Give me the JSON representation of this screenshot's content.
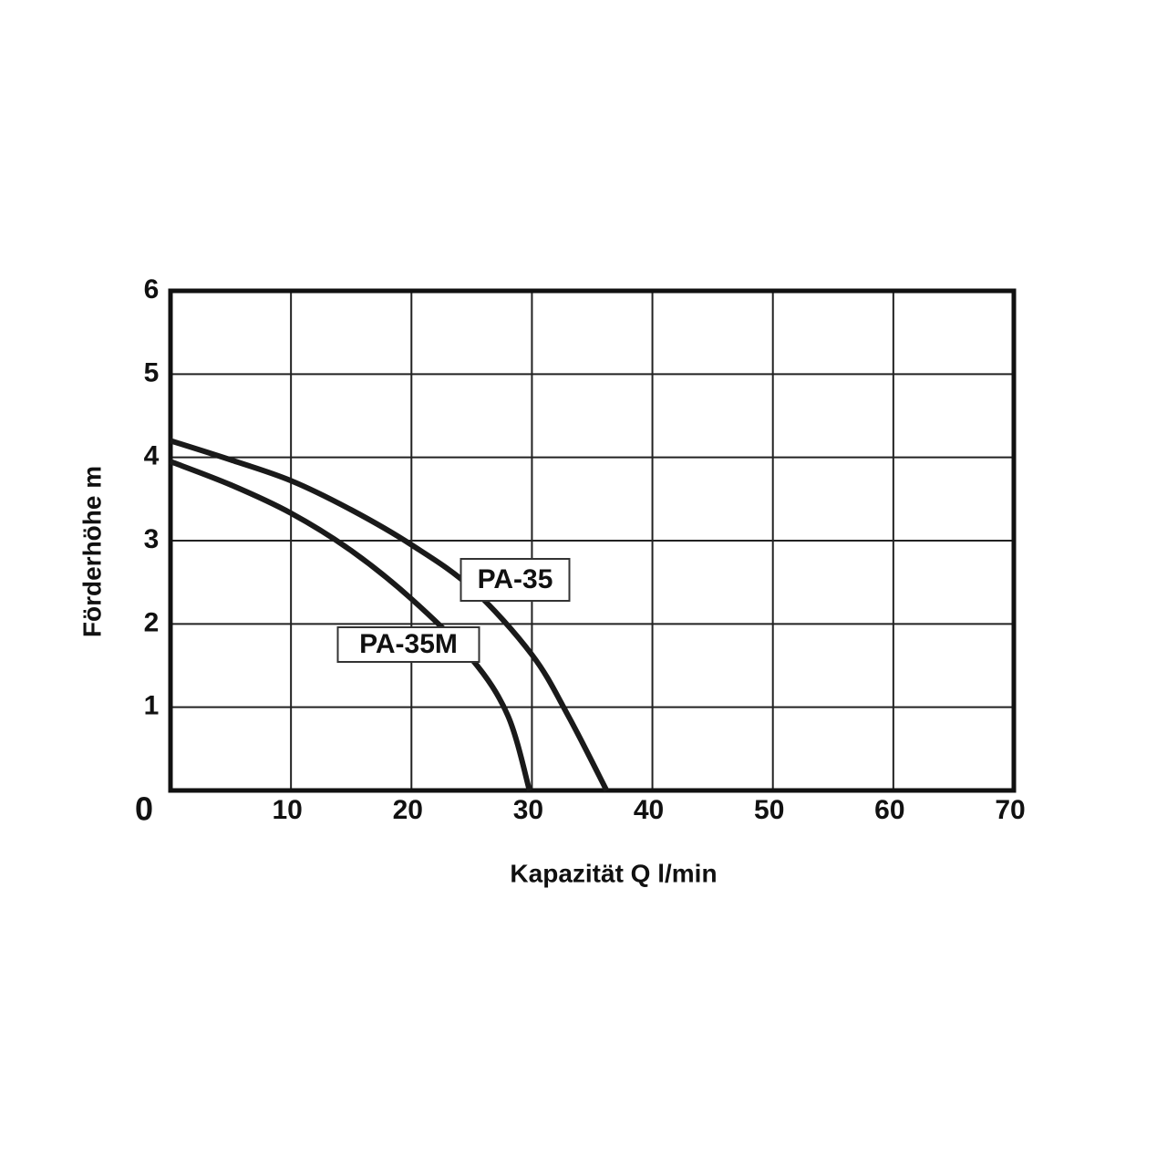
{
  "chart_data": {
    "type": "line",
    "x_label": "Kapazität Q l/min",
    "y_label": "Förderhöhe m",
    "xlim": [
      0,
      70
    ],
    "xticks": [
      0,
      10,
      20,
      30,
      40,
      50,
      60,
      70
    ],
    "ylim": [
      0,
      6
    ],
    "yticks": [
      1,
      2,
      3,
      4,
      5,
      6
    ],
    "grid": true,
    "series": [
      {
        "name": "PA-35",
        "color": "#1a1a1a",
        "x": [
          0,
          5,
          10,
          15,
          20,
          25,
          30,
          33,
          36.2
        ],
        "values": [
          4.2,
          3.97,
          3.72,
          3.37,
          2.95,
          2.43,
          1.63,
          0.9,
          0
        ]
      },
      {
        "name": "PA-35M",
        "color": "#1a1a1a",
        "x": [
          0,
          5,
          10,
          15,
          20,
          25,
          28,
          29.8
        ],
        "values": [
          3.95,
          3.67,
          3.33,
          2.88,
          2.3,
          1.58,
          0.9,
          0
        ]
      }
    ]
  }
}
